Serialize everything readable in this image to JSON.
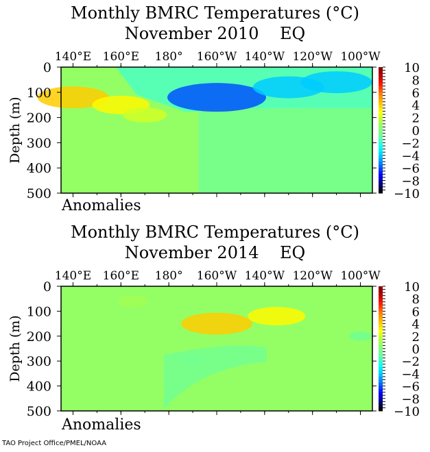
{
  "credit": "TAO Project Office/PMEL/NOAA",
  "colors": {
    "grad": [
      "#000000",
      "#00007f",
      "#0000ff",
      "#0066ff",
      "#00bfff",
      "#00ffff",
      "#5cffb0",
      "#7fff7f",
      "#b0ff40",
      "#ffff00",
      "#ffbf00",
      "#ff7f00",
      "#ff2000",
      "#bf0000",
      "#7f0000"
    ]
  },
  "chart_data": [
    {
      "type": "heatmap",
      "title": "Monthly BMRC Temperatures (°C)",
      "subtitle_month": "November 2010",
      "subtitle_loc": "EQ",
      "xlabel": "",
      "ylabel": "Depth (m)",
      "panel_label": "Anomalies",
      "x_ticklabels": [
        "140°E",
        "160°E",
        "180°",
        "160°W",
        "140°W",
        "120°W",
        "100°W"
      ],
      "y_ticklabels": [
        "0",
        "100",
        "200",
        "300",
        "400",
        "500"
      ],
      "ylim": [
        0,
        500
      ],
      "colorbar": {
        "min": -10,
        "max": 10,
        "ticklabels": [
          "10",
          "8",
          "6",
          "4",
          "2",
          "0",
          "−2",
          "−4",
          "−6",
          "−8",
          "−10"
        ]
      },
      "features": [
        {
          "lon": 140,
          "depth": 120,
          "value": 4
        },
        {
          "lon": 160,
          "depth": 150,
          "value": 3
        },
        {
          "lon": 170,
          "depth": 190,
          "value": 2
        },
        {
          "lon": 200,
          "depth": 120,
          "value": -6
        },
        {
          "lon": 230,
          "depth": 80,
          "value": -4
        },
        {
          "lon": 250,
          "depth": 60,
          "value": -4
        }
      ]
    },
    {
      "type": "heatmap",
      "title": "Monthly BMRC Temperatures (°C)",
      "subtitle_month": "November 2014",
      "subtitle_loc": "EQ",
      "xlabel": "",
      "ylabel": "Depth (m)",
      "panel_label": "Anomalies",
      "x_ticklabels": [
        "140°E",
        "160°E",
        "180°",
        "160°W",
        "140°W",
        "120°W",
        "100°W"
      ],
      "y_ticklabels": [
        "0",
        "100",
        "200",
        "300",
        "400",
        "500"
      ],
      "ylim": [
        0,
        500
      ],
      "colorbar": {
        "min": -10,
        "max": 10,
        "ticklabels": [
          "10",
          "8",
          "6",
          "4",
          "2",
          "0",
          "−2",
          "−4",
          "−6",
          "−8",
          "−10"
        ]
      },
      "features": [
        {
          "lon": 200,
          "depth": 150,
          "value": 4
        },
        {
          "lon": 225,
          "depth": 120,
          "value": 3
        },
        {
          "lon": 165,
          "depth": 60,
          "value": 1
        },
        {
          "lon": 190,
          "depth": 300,
          "value": -0.5
        },
        {
          "lon": 260,
          "depth": 200,
          "value": -0.5
        }
      ]
    }
  ]
}
